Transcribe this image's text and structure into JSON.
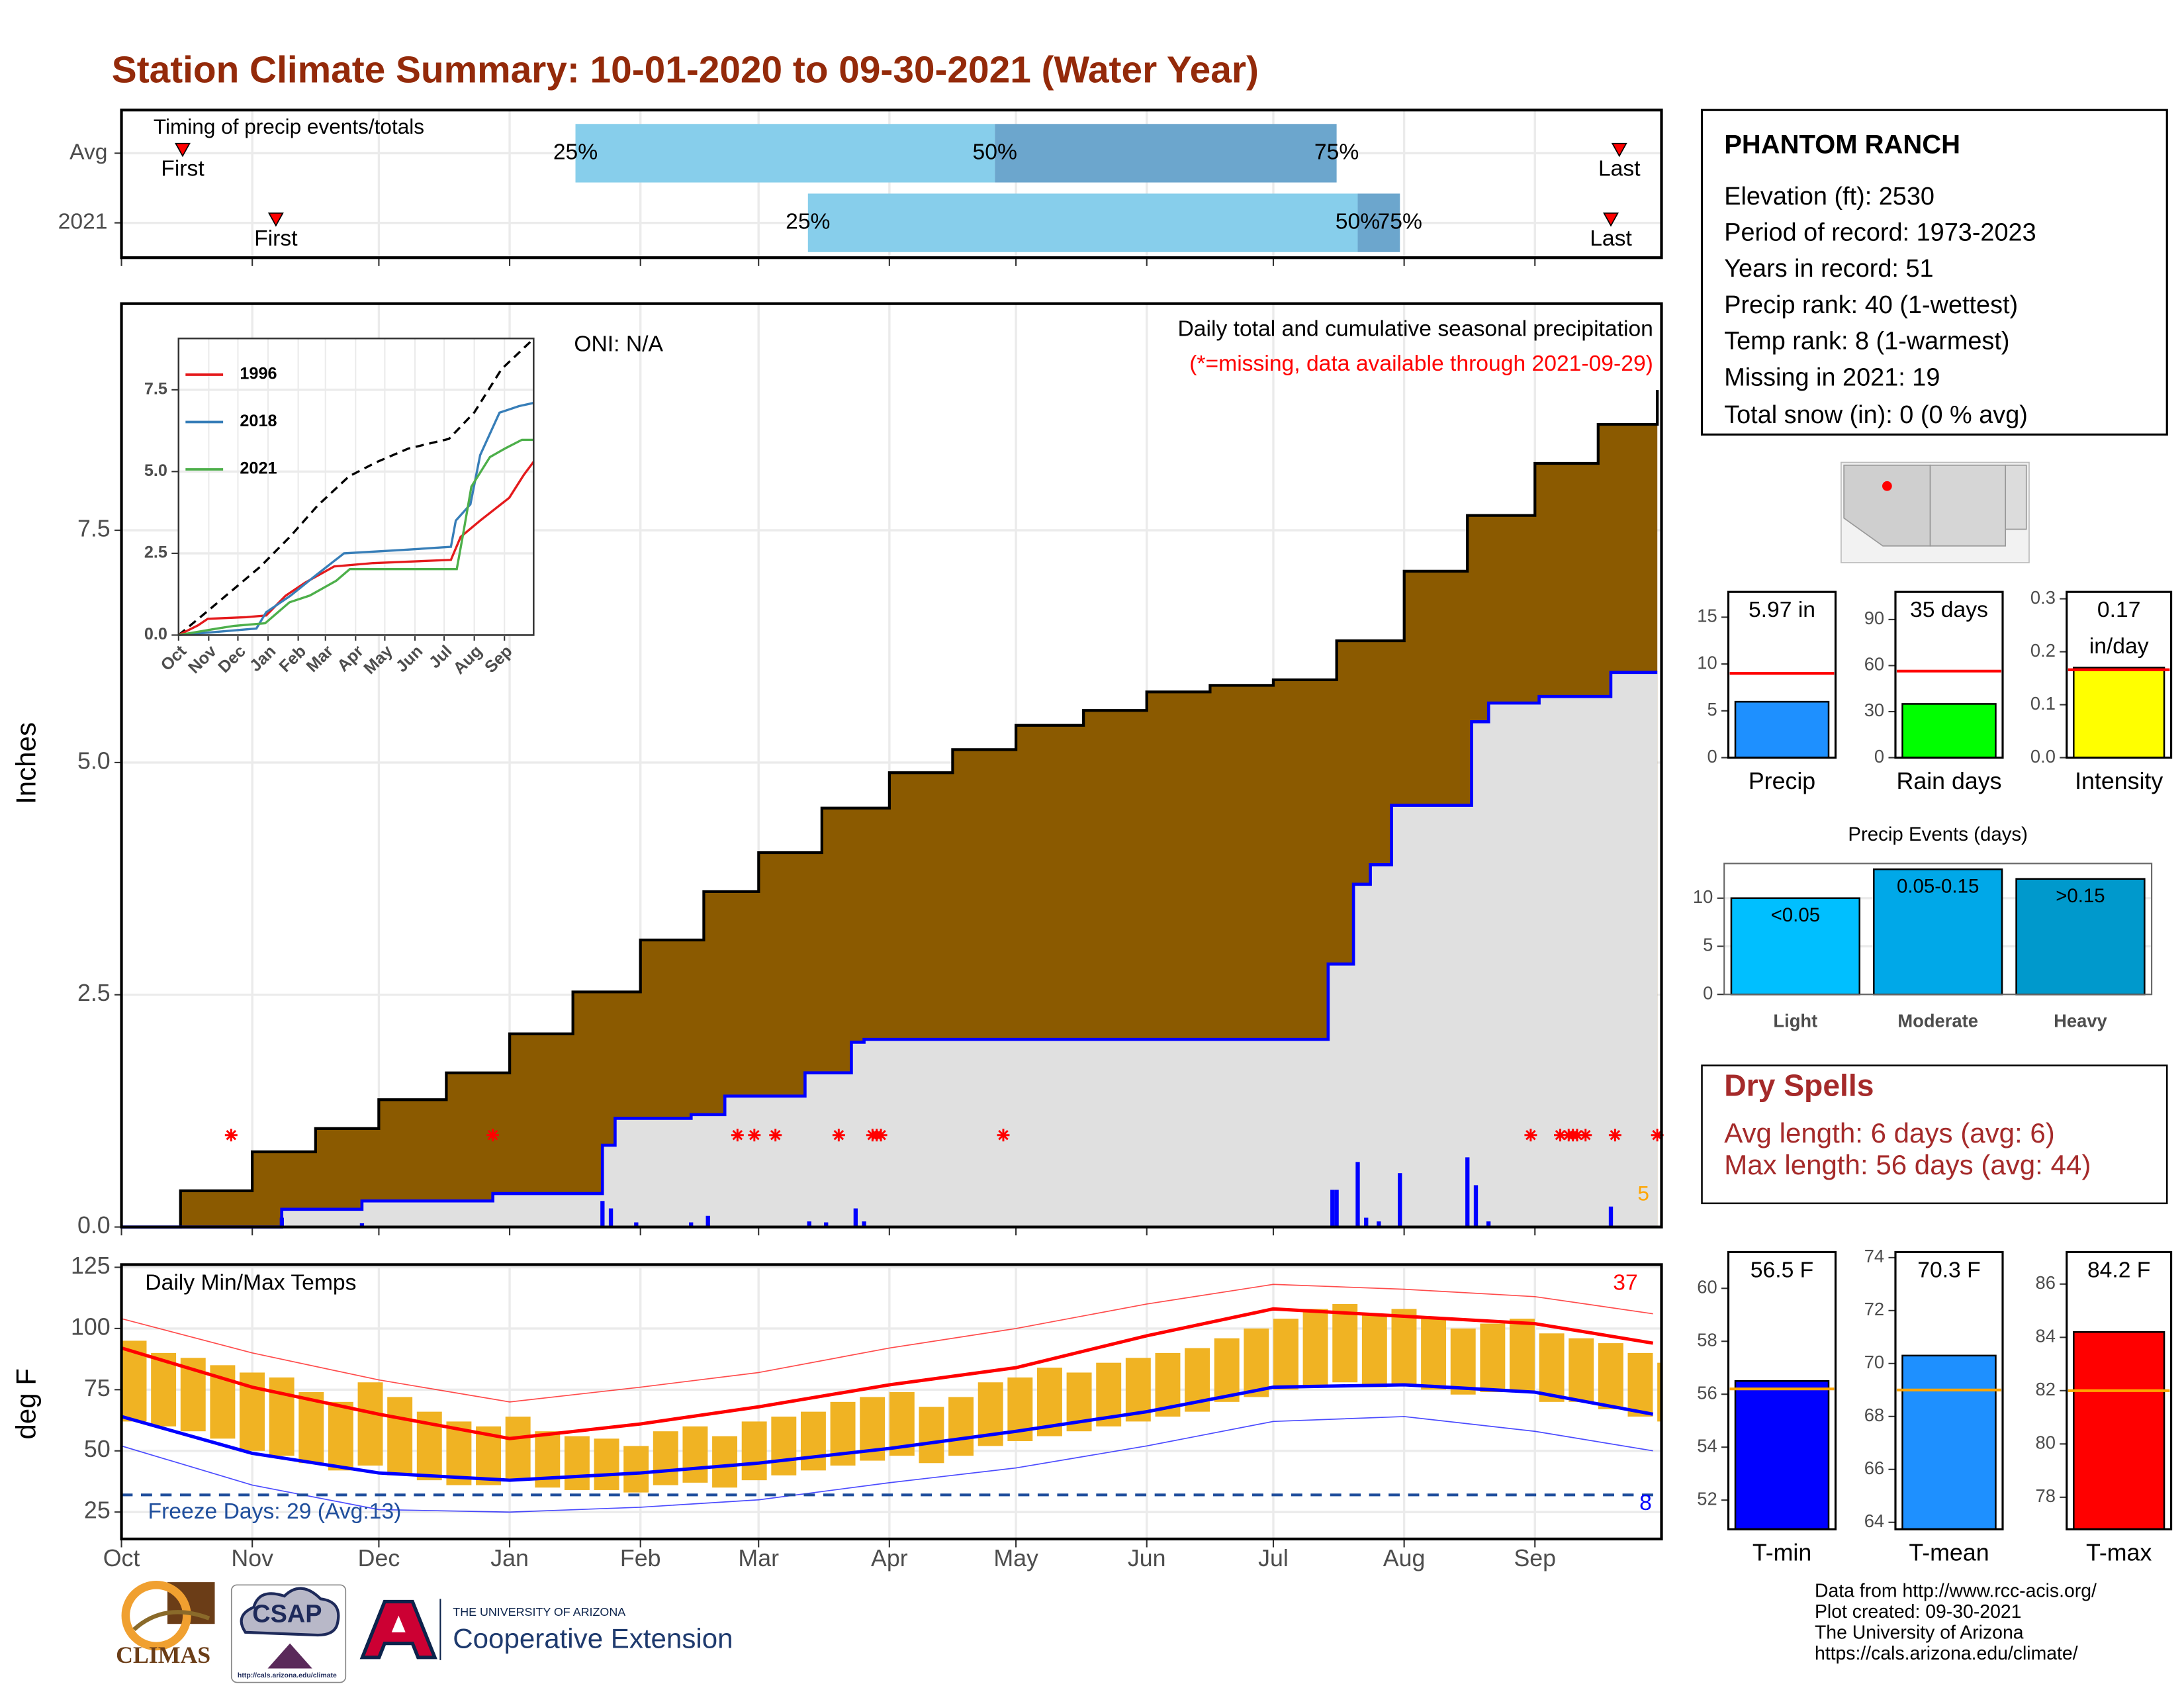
{
  "title": "Station Climate Summary: 10-01-2020 to 09-30-2021 (Water Year)",
  "station": {
    "name": "PHANTOM RANCH",
    "lines": [
      "Elevation (ft): 2530",
      "Period of record: 1973-2023",
      "Years in record: 51",
      "Precip rank: 40 (1-wettest)",
      "Temp rank: 8 (1-warmest)",
      "Missing in 2021: 19",
      "Total snow (in): 0 (0 % avg)"
    ]
  },
  "dry_spells": {
    "title": "Dry Spells",
    "lines": [
      "Avg length: 6 days (avg: 6)",
      "Max length: 56 days (avg: 44)"
    ]
  },
  "footer": {
    "climas": "CLIMAS",
    "csap": "CSAP",
    "csap_url": "http://cals.arizona.edu/climate",
    "ua": "THE UNIVERSITY OF ARIZONA",
    "extension": "Cooperative Extension",
    "credits": [
      "Data from http://www.rcc-acis.org/",
      "Plot created: 09-30-2021",
      "The University of Arizona",
      "https://cals.arizona.edu/climate/"
    ]
  },
  "chart_data": [
    {
      "type": "timing",
      "title": "Timing of precip events/totals",
      "xlim": [
        0,
        365
      ],
      "labels": {
        "first": "First",
        "last": "Last",
        "q25": "25%",
        "q50": "50%",
        "q75": "75%"
      },
      "colors": {
        "lower": "#87ceeb",
        "upper": "#6ca6cd",
        "marker": "#ff0000"
      },
      "rows": [
        {
          "name": "Avg",
          "first": 14.5,
          "q25": 107.6,
          "q50": 207,
          "q75": 288,
          "last": 355
        },
        {
          "name": "2021",
          "first": 36.6,
          "q25": 162.7,
          "q50": 293,
          "q75": 303,
          "last": 353
        }
      ]
    },
    {
      "type": "cumulative",
      "ylabel": "Inches",
      "subtitle": "Daily total and cumulative seasonal precipitation",
      "note": "(*=missing, data available through 2021-09-29)",
      "oni": "ONI: N/A",
      "record_days": 5,
      "xlim": [
        0,
        365
      ],
      "ylim": [
        0,
        9.94
      ],
      "xticks": [
        {
          "value": 0,
          "label": "Oct"
        },
        {
          "value": 31,
          "label": "Nov"
        },
        {
          "value": 61,
          "label": "Dec"
        },
        {
          "value": 92,
          "label": "Jan"
        },
        {
          "value": 123,
          "label": "Feb"
        },
        {
          "value": 151,
          "label": "Mar"
        },
        {
          "value": 182,
          "label": "Apr"
        },
        {
          "value": 212,
          "label": "May"
        },
        {
          "value": 243,
          "label": "Jun"
        },
        {
          "value": 273,
          "label": "Jul"
        },
        {
          "value": 304,
          "label": "Aug"
        },
        {
          "value": 335,
          "label": "Sep"
        }
      ],
      "yticks": [
        {
          "value": 0,
          "label": "0.0"
        },
        2.5,
        {
          "value": 5,
          "label": "5.0"
        },
        7.5
      ],
      "grid": true,
      "average": {
        "color": "#8b5a00",
        "x": [
          0,
          14,
          31,
          46,
          61,
          77,
          92,
          107,
          123,
          138,
          151,
          166,
          182,
          197,
          212,
          228,
          243,
          258,
          273,
          288,
          304,
          319,
          335,
          350,
          364
        ],
        "values": [
          0,
          0.39,
          0.81,
          1.06,
          1.37,
          1.66,
          2.08,
          2.53,
          3.09,
          3.61,
          4.03,
          4.51,
          4.89,
          5.14,
          5.4,
          5.56,
          5.76,
          5.83,
          5.89,
          6.31,
          7.06,
          7.66,
          8.22,
          8.64,
          9.01
        ]
      },
      "current": {
        "color": "#0000ff",
        "x": [
          0,
          38,
          57,
          88,
          114,
          117,
          135,
          143,
          162,
          173,
          176,
          286,
          292,
          296,
          301,
          320,
          324,
          336,
          353,
          364
        ],
        "values": [
          0,
          0.19,
          0.28,
          0.36,
          0.88,
          1.17,
          1.21,
          1.41,
          1.66,
          1.99,
          2.02,
          2.83,
          3.69,
          3.9,
          4.54,
          5.44,
          5.64,
          5.71,
          5.97,
          5.97
        ]
      },
      "daily": {
        "color": "#0000ff",
        "x": [
          38,
          57,
          114,
          116,
          122,
          135,
          139,
          163,
          167,
          174,
          176,
          287,
          288,
          293,
          295,
          298,
          303,
          319,
          321,
          324,
          353
        ],
        "values": [
          0.1,
          0.04,
          0.28,
          0.2,
          0.05,
          0.05,
          0.12,
          0.06,
          0.05,
          0.2,
          0.06,
          0.4,
          0.4,
          0.7,
          0.1,
          0.06,
          0.58,
          0.75,
          0.45,
          0.06,
          0.22
        ]
      },
      "missing_days": [
        26,
        88,
        146,
        150,
        155,
        170,
        178,
        179,
        180,
        209,
        334,
        341,
        343,
        344,
        345,
        347,
        354,
        364
      ]
    },
    {
      "type": "line",
      "xlim": [
        0,
        365
      ],
      "ylim": [
        0,
        9.07
      ],
      "xticks": [
        {
          "value": 0,
          "label": "Oct"
        },
        {
          "value": 31,
          "label": "Nov"
        },
        {
          "value": 61,
          "label": "Dec"
        },
        {
          "value": 92,
          "label": "Jan"
        },
        {
          "value": 123,
          "label": "Feb"
        },
        {
          "value": 151,
          "label": "Mar"
        },
        {
          "value": 182,
          "label": "Apr"
        },
        {
          "value": 212,
          "label": "May"
        },
        {
          "value": 243,
          "label": "Jun"
        },
        {
          "value": 273,
          "label": "Jul"
        },
        {
          "value": 304,
          "label": "Aug"
        },
        {
          "value": 335,
          "label": "Sep"
        }
      ],
      "yticks": [
        {
          "value": 0,
          "label": "0.0"
        },
        2.5,
        {
          "value": 5,
          "label": "5.0"
        },
        7.5
      ],
      "average": {
        "color": "#000000",
        "x": [
          0,
          26,
          84,
          115,
          143,
          175,
          203,
          236,
          278,
          304,
          332,
          365
        ],
        "values": [
          0,
          0.64,
          2.09,
          3.02,
          3.96,
          4.85,
          5.28,
          5.7,
          6.0,
          6.81,
          8.13,
          9.06
        ]
      },
      "series": [
        {
          "name": "1996",
          "color": "#e41a1c",
          "x": [
            0,
            20,
            30,
            70,
            90,
            110,
            130,
            160,
            200,
            280,
            290,
            310,
            340,
            355,
            365
          ],
          "values": [
            0,
            0.3,
            0.5,
            0.55,
            0.6,
            1.2,
            1.6,
            2.1,
            2.2,
            2.3,
            3.0,
            3.5,
            4.2,
            4.9,
            5.3
          ]
        },
        {
          "name": "2018",
          "color": "#377eb8",
          "x": [
            0,
            80,
            90,
            115,
            140,
            170,
            230,
            280,
            285,
            300,
            310,
            330,
            350,
            365
          ],
          "values": [
            0,
            0.2,
            0.7,
            1.2,
            1.8,
            2.5,
            2.6,
            2.7,
            3.5,
            4.0,
            5.5,
            6.8,
            7.0,
            7.1
          ]
        },
        {
          "name": "2021",
          "color": "#4daf4a",
          "x": [
            0,
            38,
            57,
            89,
            114,
            135,
            162,
            176,
            286,
            292,
            301,
            320,
            336,
            353,
            365
          ],
          "values": [
            0,
            0.19,
            0.28,
            0.36,
            1.0,
            1.21,
            1.66,
            2.02,
            2.02,
            3.0,
            4.54,
            5.44,
            5.71,
            5.97,
            5.97
          ]
        }
      ]
    },
    {
      "type": "summary",
      "categories": [
        "Precip"
      ],
      "values": [
        5.97
      ],
      "value_labels": [
        "5.97 in"
      ],
      "average": 9.0,
      "color": "#1e90ff",
      "average_color": "#ff0000",
      "ylim": [
        0,
        17.7
      ],
      "yticks": [
        0,
        5,
        10,
        15
      ]
    },
    {
      "type": "summary",
      "categories": [
        "Rain days"
      ],
      "values": [
        35
      ],
      "value_labels": [
        "35 days"
      ],
      "average": 56.4,
      "color": "#00ff00",
      "average_color": "#ff0000",
      "ylim": [
        0,
        108
      ],
      "yticks": [
        0,
        30,
        60,
        90
      ]
    },
    {
      "type": "summary",
      "categories": [
        "Intensity"
      ],
      "values": [
        0.17
      ],
      "value_labels": [
        "0.17 in/day"
      ],
      "average": 0.166,
      "color": "#ffff00",
      "average_color": "#ff0000",
      "ylim": [
        0,
        0.313
      ],
      "yticks": [
        {
          "value": 0,
          "label": "0.0"
        },
        0.1,
        0.2,
        0.3
      ]
    },
    {
      "type": "bar",
      "title": "Precip Events (days)",
      "categories": [
        "Light",
        "Moderate",
        "Heavy"
      ],
      "values": [
        10,
        13,
        12
      ],
      "value_labels": [
        "<0.05",
        "0.05-0.15",
        ">0.15"
      ],
      "colors": [
        "#00bfff",
        "#00a8e8",
        "#0099cc"
      ],
      "ylim": [
        0,
        13.6
      ],
      "yticks": [
        0,
        5,
        10
      ],
      "grid": true
    },
    {
      "type": "temperature",
      "title": "Daily Min/Max Temps",
      "ylabel": "deg F",
      "freeze_label": "Freeze Days: 29 (Avg:13)",
      "freeze": 32,
      "record_high_count": 37,
      "record_low_count": 8,
      "xlim": [
        0,
        365
      ],
      "ylim": [
        14,
        126.1
      ],
      "yticks": [
        25,
        50,
        75,
        100,
        125
      ],
      "grid": true,
      "x": [
        0,
        7,
        14,
        21,
        28,
        35,
        42,
        49,
        56,
        63,
        70,
        77,
        84,
        91,
        98,
        105,
        112,
        119,
        126,
        133,
        140,
        147,
        154,
        161,
        168,
        175,
        182,
        189,
        196,
        203,
        210,
        217,
        224,
        231,
        238,
        245,
        252,
        259,
        266,
        273,
        280,
        287,
        294,
        301,
        308,
        315,
        322,
        329,
        336,
        343,
        350,
        357,
        364
      ],
      "tmax": [
        95,
        90,
        88,
        85,
        82,
        80,
        74,
        70,
        78,
        72,
        66,
        62,
        60,
        64,
        58,
        56,
        55,
        52,
        58,
        60,
        56,
        62,
        64,
        66,
        70,
        72,
        74,
        68,
        72,
        78,
        80,
        84,
        82,
        86,
        88,
        90,
        92,
        96,
        100,
        104,
        108,
        110,
        106,
        108,
        104,
        100,
        102,
        104,
        98,
        96,
        94,
        90,
        86
      ],
      "tmin": [
        62,
        60,
        58,
        55,
        50,
        48,
        45,
        42,
        44,
        40,
        38,
        36,
        36,
        38,
        35,
        34,
        34,
        33,
        36,
        37,
        35,
        38,
        40,
        42,
        44,
        46,
        48,
        45,
        48,
        52,
        54,
        56,
        58,
        60,
        62,
        64,
        66,
        70,
        72,
        75,
        76,
        78,
        76,
        77,
        75,
        73,
        74,
        74,
        70,
        70,
        67,
        64,
        62
      ],
      "bar_color": "#f0b323",
      "normals_x": [
        0,
        31,
        61,
        92,
        123,
        151,
        182,
        212,
        243,
        273,
        304,
        335,
        363
      ],
      "normal_max": [
        92,
        76,
        65,
        55,
        61,
        68,
        77,
        84,
        97,
        108,
        105,
        102,
        94
      ],
      "normal_min": [
        64,
        49,
        41,
        38,
        41,
        45,
        51,
        58,
        66,
        76,
        77,
        74,
        65
      ],
      "record_max": [
        104,
        90,
        79,
        70,
        76,
        82,
        92,
        100,
        110,
        118,
        116,
        113,
        106
      ],
      "record_min": [
        52,
        36,
        26,
        25,
        27,
        30,
        37,
        43,
        52,
        62,
        64,
        58,
        50
      ]
    },
    {
      "type": "summary",
      "categories": [
        "T-min"
      ],
      "values": [
        56.5
      ],
      "value_labels": [
        "56.5 F"
      ],
      "average": 56.2,
      "color": "#0000ff",
      "average_color": "#ffa500",
      "ylim": [
        50.9,
        61.37
      ],
      "yticks": [
        52,
        54,
        56,
        58,
        60
      ]
    },
    {
      "type": "summary",
      "categories": [
        "T-mean"
      ],
      "values": [
        70.3
      ],
      "value_labels": [
        "70.3 F"
      ],
      "average": 69.0,
      "color": "#1e90ff",
      "average_color": "#ffa500",
      "ylim": [
        63.74,
        74.21
      ],
      "yticks": [
        64,
        66,
        68,
        70,
        72,
        74
      ]
    },
    {
      "type": "summary",
      "categories": [
        "T-max"
      ],
      "values": [
        84.2
      ],
      "value_labels": [
        "84.2 F"
      ],
      "average": 82.0,
      "color": "#ff0000",
      "average_color": "#ffa500",
      "ylim": [
        76.8,
        87.2
      ],
      "yticks": [
        78,
        80,
        82,
        84,
        86
      ]
    }
  ]
}
